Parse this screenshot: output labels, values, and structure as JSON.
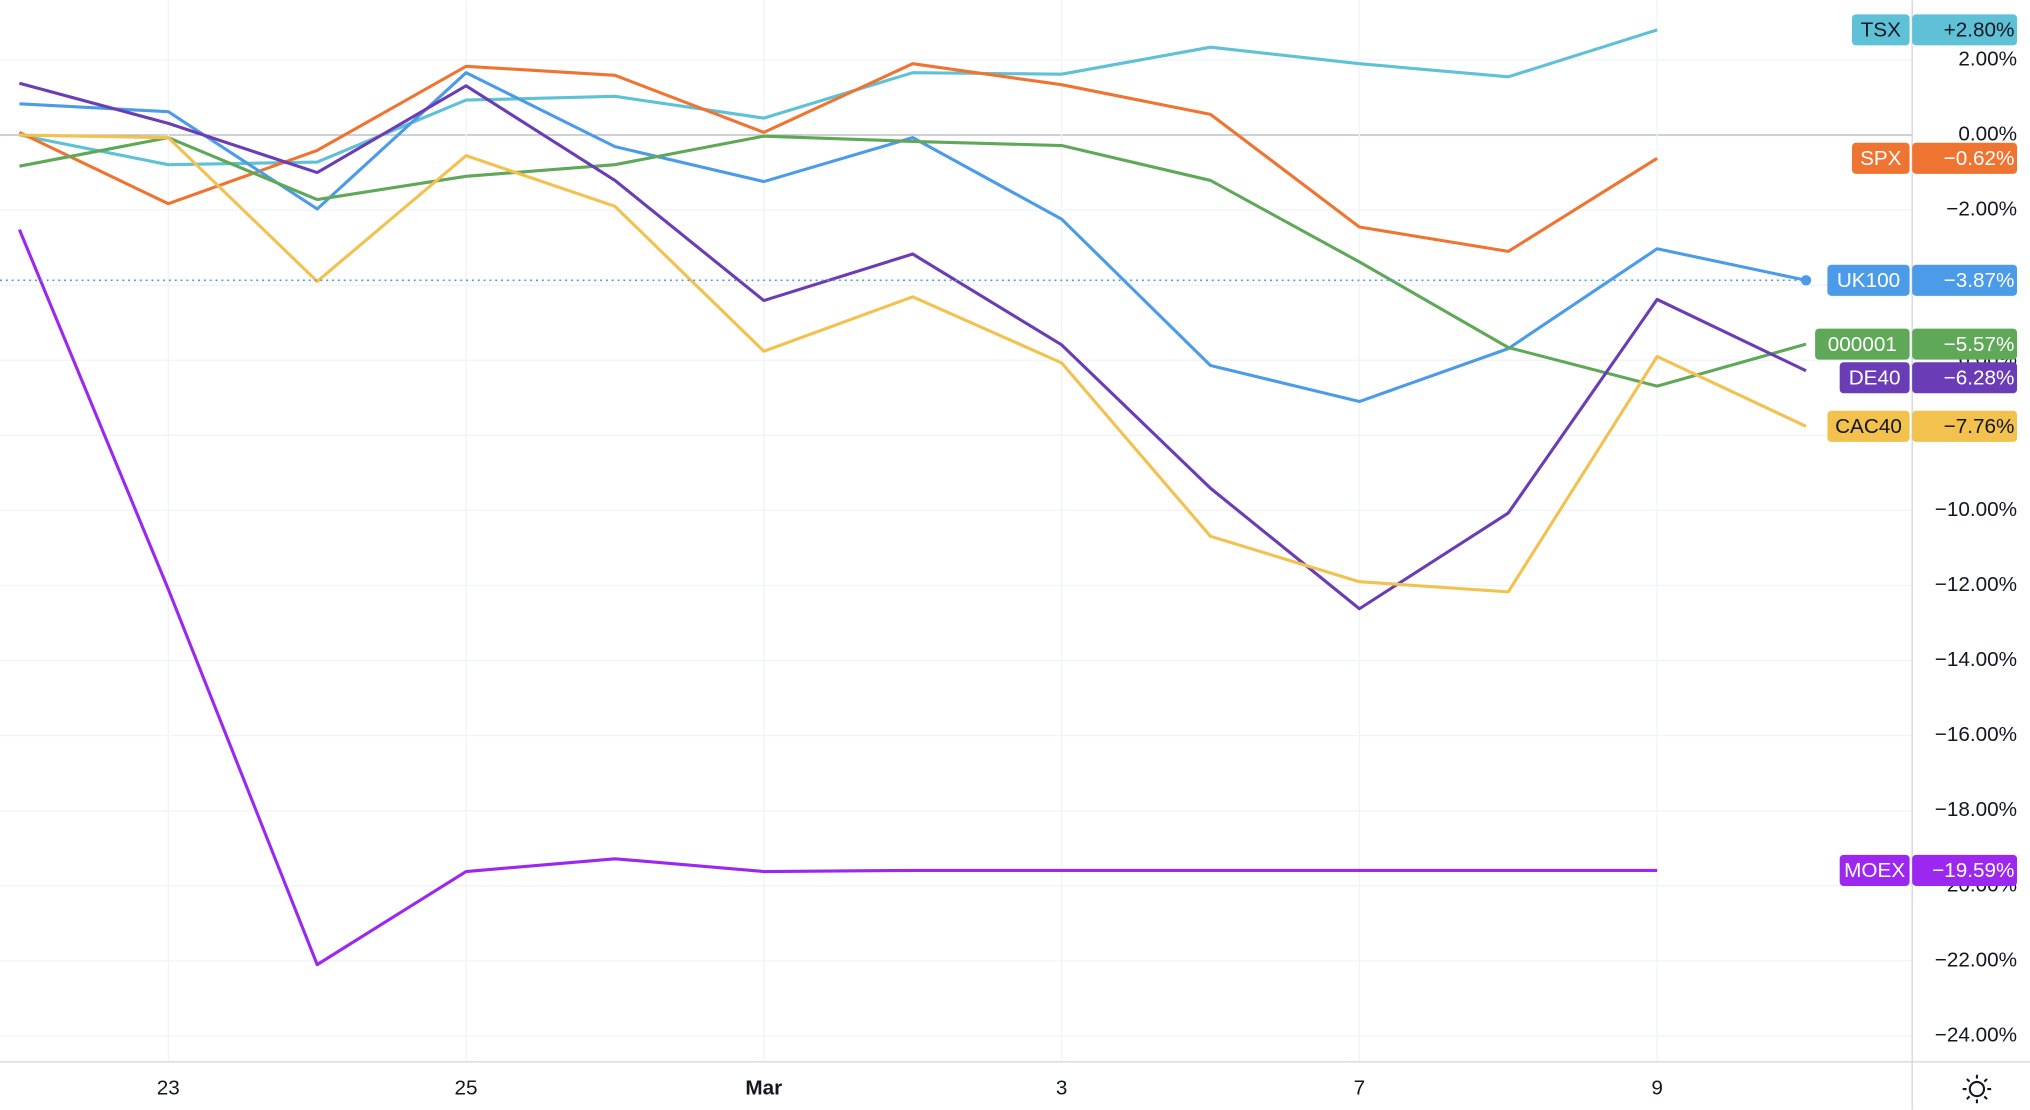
{
  "chart_data": {
    "type": "line",
    "categories": [
      null,
      "23",
      null,
      "25",
      null,
      "Mar",
      null,
      "3",
      null,
      "7",
      null,
      "9",
      null
    ],
    "ylim": [
      -24.69,
      3.59
    ],
    "yticks": [
      {
        "value": 2,
        "label": "2.00%"
      },
      {
        "value": 0,
        "label": "0.00%"
      },
      {
        "value": -2,
        "label": "−2.00%"
      },
      {
        "value": -4,
        "label": "−4.00%"
      },
      {
        "value": -6,
        "label": "−6.00%"
      },
      {
        "value": -8,
        "label": "−8.00%"
      },
      {
        "value": -10,
        "label": "−10.00%"
      },
      {
        "value": -12,
        "label": "−12.00%"
      },
      {
        "value": -14,
        "label": "−14.00%"
      },
      {
        "value": -16,
        "label": "−16.00%"
      },
      {
        "value": -18,
        "label": "−18.00%"
      },
      {
        "value": -20,
        "label": "−20.00%"
      },
      {
        "value": -22,
        "label": "−22.00%"
      },
      {
        "value": -24,
        "label": "−24.00%"
      }
    ],
    "grid": true,
    "series": [
      {
        "name": "TSX",
        "color": "#5fc1d6",
        "text_color": "#131722",
        "values": [
          0.0,
          -0.79,
          -0.72,
          0.93,
          1.03,
          0.45,
          1.66,
          1.62,
          2.34,
          1.9,
          1.55,
          2.8,
          null
        ],
        "value_labels": [
          null,
          null,
          null,
          null,
          null,
          null,
          null,
          null,
          null,
          null,
          null,
          "+2.80%",
          null
        ]
      },
      {
        "name": "SPX",
        "color": "#ef7431",
        "text_color": "#ffffff",
        "values": [
          0.07,
          -1.83,
          -0.41,
          1.83,
          1.59,
          0.07,
          1.9,
          1.34,
          0.55,
          -2.45,
          -3.1,
          -0.62,
          null
        ],
        "value_labels": [
          null,
          null,
          null,
          null,
          null,
          null,
          null,
          null,
          null,
          null,
          null,
          "−0.62%",
          null
        ]
      },
      {
        "name": "UK100",
        "color": "#4c9be8",
        "text_color": "#ffffff",
        "values": [
          0.83,
          0.62,
          -1.97,
          1.66,
          -0.31,
          -1.24,
          -0.07,
          -2.24,
          -6.14,
          -7.1,
          -5.69,
          -3.03,
          -3.87
        ],
        "value_labels": [
          null,
          null,
          null,
          null,
          null,
          null,
          null,
          null,
          null,
          null,
          null,
          null,
          "−3.87%"
        ]
      },
      {
        "name": "000001",
        "color": "#5fa857",
        "text_color": "#ffffff",
        "values": [
          -0.83,
          -0.07,
          -1.72,
          -1.1,
          -0.79,
          -0.03,
          -0.17,
          -0.28,
          -1.21,
          -3.38,
          -5.66,
          -6.69,
          -5.57
        ],
        "value_labels": [
          null,
          null,
          null,
          null,
          null,
          null,
          null,
          null,
          null,
          null,
          null,
          null,
          "−5.57%"
        ]
      },
      {
        "name": "DE40",
        "color": "#6a3cb5",
        "text_color": "#ffffff",
        "values": [
          1.38,
          0.31,
          -1.0,
          1.31,
          -1.21,
          -4.41,
          -3.17,
          -5.59,
          -9.41,
          -12.62,
          -10.07,
          -4.38,
          -6.28
        ],
        "value_labels": [
          null,
          null,
          null,
          null,
          null,
          null,
          null,
          null,
          null,
          null,
          null,
          null,
          "−6.28%"
        ]
      },
      {
        "name": "CAC40",
        "color": "#f2c14e",
        "text_color": "#131722",
        "values": [
          0.0,
          -0.07,
          -3.9,
          -0.55,
          -1.9,
          -5.76,
          -4.31,
          -6.07,
          -10.69,
          -11.9,
          -12.17,
          -5.9,
          -7.76
        ],
        "value_labels": [
          null,
          null,
          null,
          null,
          null,
          null,
          null,
          null,
          null,
          null,
          null,
          null,
          "−7.76%"
        ]
      },
      {
        "name": "MOEX",
        "color": "#9c27f0",
        "text_color": "#ffffff",
        "values": [
          -2.52,
          -12.1,
          -22.1,
          -19.62,
          -19.28,
          -19.62,
          -19.59,
          -19.59,
          -19.59,
          -19.59,
          -19.59,
          -19.59,
          null
        ],
        "value_labels": [
          null,
          null,
          null,
          null,
          null,
          null,
          null,
          null,
          null,
          null,
          null,
          "−19.59%",
          null
        ]
      }
    ]
  }
}
